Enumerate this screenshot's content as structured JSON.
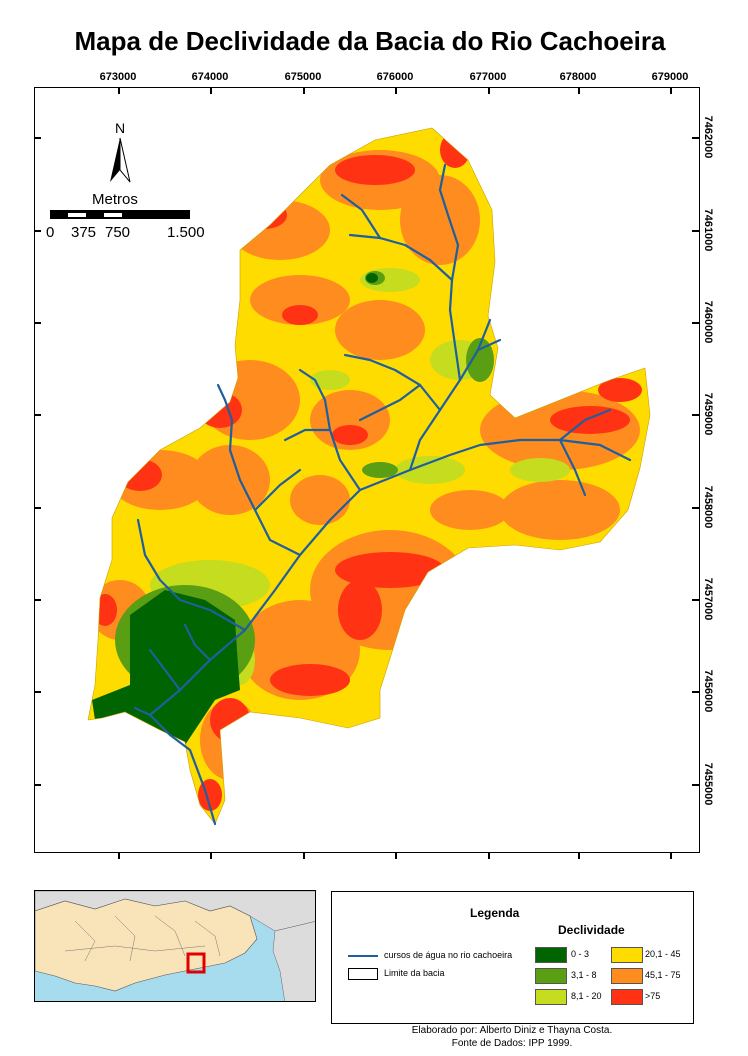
{
  "title": "Mapa de Declividade da Bacia do Rio Cachoeira",
  "x_ticks": [
    "673000",
    "674000",
    "675000",
    "676000",
    "677000",
    "678000",
    "679000"
  ],
  "y_ticks": [
    "7462000",
    "7461000",
    "7460000",
    "7459000",
    "7458000",
    "7457000",
    "7456000",
    "7455000"
  ],
  "north_label": "N",
  "scale": {
    "title": "Metros",
    "labels": [
      "0",
      "375",
      "750",
      "1.500"
    ]
  },
  "legend": {
    "title": "Legenda",
    "subtitle": "Declividade",
    "stream_label": "cursos de água no rio cachoeira",
    "basin_label": "Limite da bacia",
    "classes": [
      {
        "label": "0 - 3",
        "color": "#006400"
      },
      {
        "label": "3,1 - 8",
        "color": "#5a9e14"
      },
      {
        "label": "8,1 - 20",
        "color": "#c6dc1e"
      },
      {
        "label": "20,1 - 45",
        "color": "#ffdc00"
      },
      {
        "label": "45,1 - 75",
        "color": "#ff8c1e"
      },
      {
        "label": ">75",
        "color": "#ff3214"
      }
    ]
  },
  "credits": {
    "line1": "Elaborado por: Alberto Diniz e Thayna Costa.",
    "line2": "Fonte de Dados: IPP 1999."
  },
  "colors": {
    "stream": "#1f5f9e",
    "inset_sea": "#a7dcef",
    "inset_land": "#f9e3b8",
    "inset_other": "#dcdcdc",
    "inset_highlight": "#e00000"
  }
}
